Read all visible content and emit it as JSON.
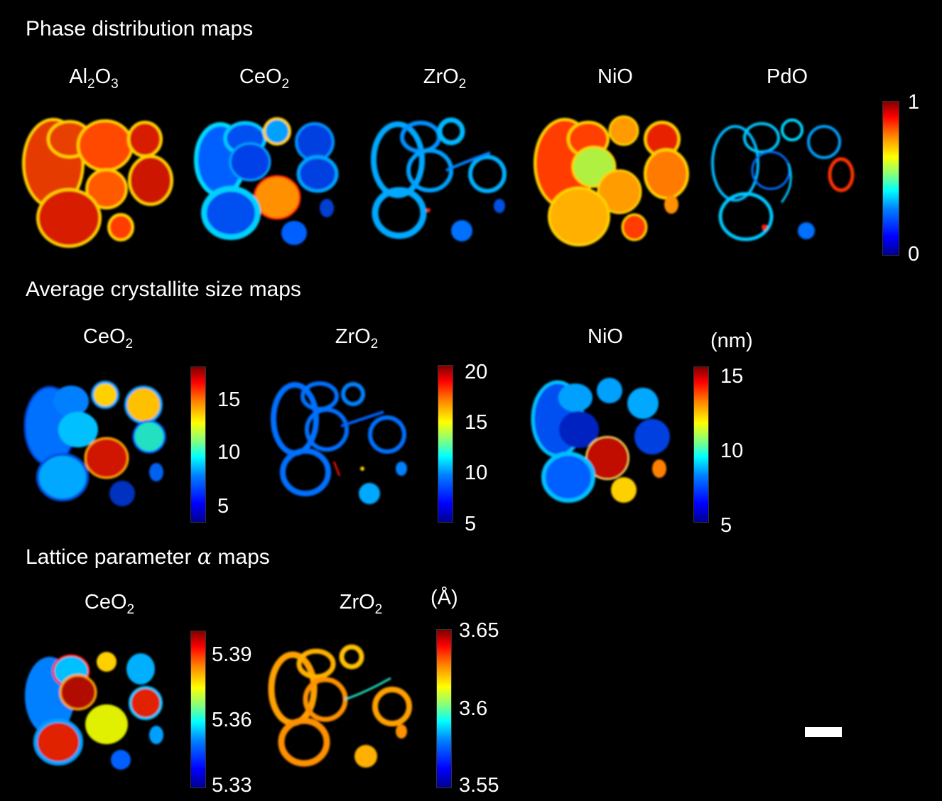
{
  "sections": {
    "phase_title": "Phase distribution maps",
    "size_title": "Average crystallite size maps",
    "lattice_title_pre": "Lattice parameter ",
    "lattice_title_symbol": "α",
    "lattice_title_post": " maps"
  },
  "phase_maps": {
    "labels": [
      {
        "base": "Al",
        "sub": "2",
        "base2": "O",
        "sub2": "3"
      },
      {
        "base": "CeO",
        "sub": "2"
      },
      {
        "base": "ZrO",
        "sub": "2"
      },
      {
        "base": "NiO"
      },
      {
        "base": "PdO"
      }
    ],
    "colorbar": {
      "max": "1",
      "min": "0"
    }
  },
  "size_maps": {
    "labels": [
      {
        "base": "CeO",
        "sub": "2"
      },
      {
        "base": "ZrO",
        "sub": "2"
      },
      {
        "base": "NiO"
      }
    ],
    "unit": "(nm)",
    "colorbars": [
      {
        "ticks": [
          "15",
          "10",
          "5"
        ]
      },
      {
        "ticks": [
          "20",
          "15",
          "10",
          "5"
        ]
      },
      {
        "ticks": [
          "15",
          "10",
          "5"
        ]
      }
    ]
  },
  "lattice_maps": {
    "labels": [
      {
        "base": "CeO",
        "sub": "2"
      },
      {
        "base": "ZrO",
        "sub": "2"
      }
    ],
    "unit": "(Å)",
    "colorbars": [
      {
        "ticks": [
          "5.39",
          "5.36",
          "5.33"
        ]
      },
      {
        "ticks": [
          "3.65",
          "3.6",
          "3.55"
        ]
      }
    ]
  },
  "colors": {
    "background": "#000000",
    "colormap": "jet"
  }
}
